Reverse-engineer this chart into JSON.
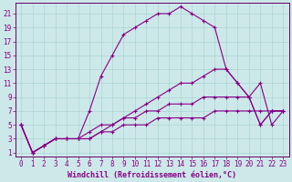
{
  "xlabel": "Windchill (Refroidissement éolien,°C)",
  "bg_color": "#cce8e8",
  "line_color": "#880088",
  "xlim": [
    -0.5,
    23.5
  ],
  "ylim": [
    0.5,
    22.5
  ],
  "xticks": [
    0,
    1,
    2,
    3,
    4,
    5,
    6,
    7,
    8,
    9,
    10,
    11,
    12,
    13,
    14,
    15,
    16,
    17,
    18,
    19,
    20,
    21,
    22,
    23
  ],
  "yticks": [
    1,
    3,
    5,
    7,
    9,
    11,
    13,
    15,
    17,
    19,
    21
  ],
  "series": [
    [
      0,
      1,
      2,
      3,
      4,
      5,
      6,
      7,
      8,
      9,
      10,
      11,
      12,
      13,
      14,
      15,
      16,
      17,
      18,
      19,
      20,
      21,
      22,
      23
    ],
    [
      5,
      1,
      2,
      3,
      3,
      3,
      7,
      12,
      15,
      18,
      19,
      20,
      21,
      21,
      22,
      21,
      20,
      19,
      13,
      11,
      9,
      5,
      7,
      7
    ],
    [
      5,
      1,
      2,
      3,
      3,
      3,
      3,
      4,
      5,
      6,
      7,
      8,
      9,
      10,
      11,
      11,
      12,
      13,
      13,
      11,
      9,
      5,
      7,
      7
    ],
    [
      5,
      1,
      2,
      3,
      3,
      3,
      4,
      5,
      5,
      6,
      6,
      7,
      7,
      8,
      8,
      8,
      9,
      9,
      9,
      9,
      9,
      11,
      5,
      7
    ],
    [
      5,
      1,
      2,
      3,
      3,
      3,
      3,
      4,
      4,
      5,
      5,
      5,
      6,
      6,
      6,
      6,
      6,
      7,
      7,
      7,
      7,
      7,
      7,
      7
    ]
  ],
  "grid_color": "#aad4d4",
  "spine_color": "#660066",
  "tick_label_size": 5.5,
  "xlabel_size": 6.0
}
